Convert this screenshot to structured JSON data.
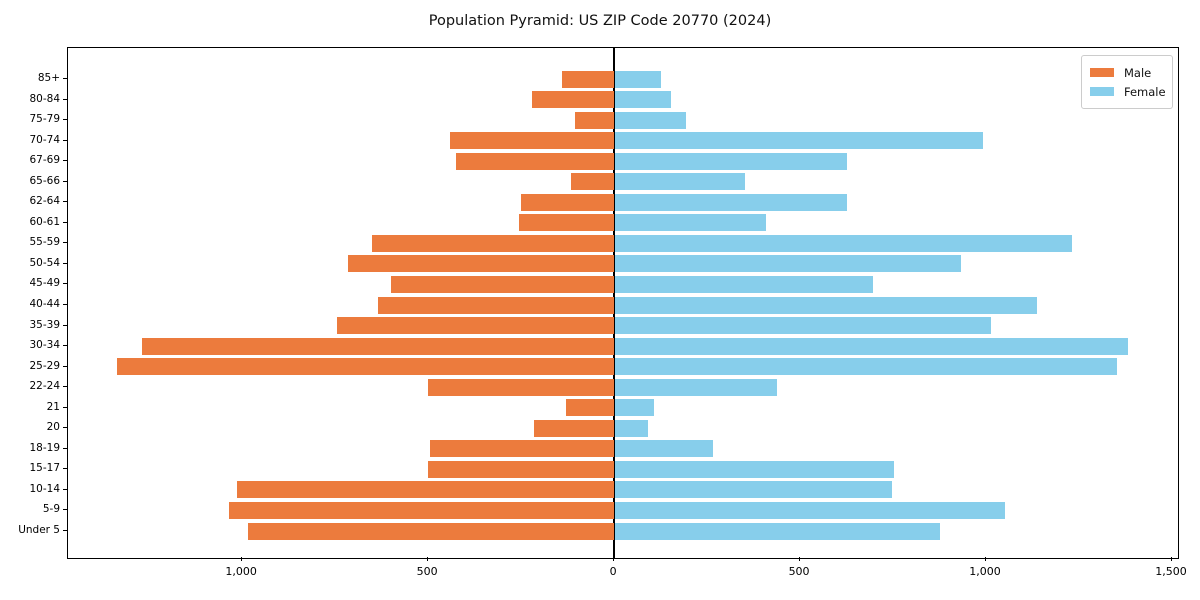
{
  "title": "Population Pyramid: US ZIP Code 20770 (2024)",
  "colors": {
    "male": "#ec7b3d",
    "female": "#87ceeb",
    "axis": "#000000"
  },
  "chart_data": {
    "type": "bar",
    "orientation": "horizontal-pyramid",
    "title": "Population Pyramid: US ZIP Code 20770 (2024)",
    "categories_top_to_bottom": [
      "85+",
      "80-84",
      "75-79",
      "70-74",
      "67-69",
      "65-66",
      "62-64",
      "60-61",
      "55-59",
      "50-54",
      "45-49",
      "40-44",
      "35-39",
      "30-34",
      "25-29",
      "22-24",
      "21",
      "20",
      "18-19",
      "15-17",
      "10-14",
      "5-9",
      "Under 5"
    ],
    "series": [
      {
        "name": "Male",
        "side": "left",
        "color": "#ec7b3d",
        "values": [
          140,
          220,
          105,
          440,
          425,
          115,
          250,
          255,
          650,
          715,
          600,
          635,
          745,
          1270,
          1335,
          500,
          130,
          215,
          495,
          500,
          1015,
          1035,
          985
        ]
      },
      {
        "name": "Female",
        "side": "right",
        "color": "#87ceeb",
        "values": [
          125,
          150,
          190,
          990,
          625,
          350,
          625,
          405,
          1230,
          930,
          695,
          1135,
          1010,
          1380,
          1350,
          435,
          105,
          90,
          265,
          750,
          745,
          1050,
          875
        ]
      }
    ],
    "x_axis": {
      "tick_values": [
        -1000,
        -500,
        0,
        500,
        1000,
        1500
      ],
      "tick_labels": [
        "1,000",
        "500",
        "0",
        "500",
        "1,000",
        "1,500"
      ],
      "xlim": [
        -1468,
        1516
      ]
    },
    "grid": false,
    "legend_position": "upper right"
  },
  "legend": {
    "male_label": "Male",
    "female_label": "Female"
  }
}
